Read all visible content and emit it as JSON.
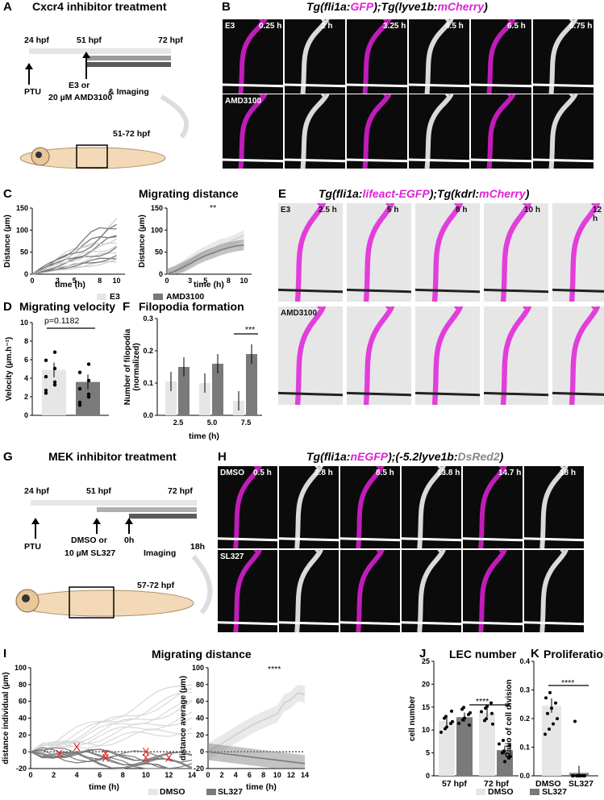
{
  "panels": {
    "A": "A",
    "B": "B",
    "C": "C",
    "D": "D",
    "E": "E",
    "F": "F",
    "G": "G",
    "H": "H",
    "I": "I",
    "J": "J",
    "K": "K"
  },
  "a": {
    "title": "Cxcr4 inhibitor treatment",
    "t24": "24 hpf",
    "t51": "51 hpf",
    "t72": "72 hpf",
    "ptu": "PTU",
    "drug_line1": "E3 or",
    "drug_line2": "20 µM AMD3100",
    "imaging": "& Imaging",
    "stage": "51-72 hpf"
  },
  "b": {
    "title_prefix": "Tg(fli1a:",
    "title_g": "GFP",
    "title_mid": ");Tg(lyve1b:",
    "title_m": "mCherry",
    "title_suffix": ")",
    "row1": "E3",
    "row2": "AMD3100",
    "times": [
      "0.25 h",
      "2 h",
      "3.25 h",
      "4.5 h",
      "6.5 h",
      "6.75 h"
    ]
  },
  "c": {
    "title": "Migrating distance",
    "ylabel": "Distance (µm)",
    "xlabel": "time (h)",
    "sig": "**",
    "legend": [
      "E3",
      "AMD3100"
    ],
    "yticks": [
      "0",
      "50",
      "100",
      "150"
    ],
    "xticks": [
      "0",
      "3",
      "5",
      "8",
      "10"
    ]
  },
  "d": {
    "title": "Migrating velocity",
    "ylabel": "Velocity (µm.h⁻¹)",
    "p": "p=0.1182",
    "yticks": [
      "0",
      "2",
      "4",
      "6",
      "8",
      "10"
    ]
  },
  "e": {
    "title_prefix": "Tg(fli1a:",
    "title_g": "lifeact-EGFP",
    "title_mid": ");Tg(kdrl:",
    "title_m": "mCherry",
    "title_suffix": ")",
    "row1": "E3",
    "row2": "AMD3100",
    "times": [
      "2.5 h",
      "5 h",
      "8 h",
      "10 h",
      "12 h"
    ]
  },
  "f": {
    "title": "Filopodia formation",
    "ylabel_1": "Number of filopodia",
    "ylabel_2": "(normalized)",
    "xlabel": "time (h)",
    "sig": "***",
    "yticks": [
      "0.0",
      "0.1",
      "0.2",
      "0.3"
    ],
    "xticks": [
      "2.5",
      "5.0",
      "7.5"
    ]
  },
  "g": {
    "title": "MEK inhibitor treatment",
    "t24": "24 hpf",
    "t51": "51 hpf",
    "t72": "72 hpf",
    "ptu": "PTU",
    "drug_line1": "DMSO or",
    "drug_line2": "10 µM SL327",
    "zero": "0h",
    "imaging": "Imaging",
    "h18": "18h",
    "stage": "57-72 hpf"
  },
  "h": {
    "title_prefix": "Tg(fli1a:",
    "title_g": "nEGFP",
    "title_mid": ");(-5.2lyve1b:",
    "title_m": "DsRed2",
    "title_suffix": ")",
    "row1": "DMSO",
    "row2": "SL327",
    "times": [
      "0.5 h",
      "2.8 h",
      "8.5 h",
      "13.8 h",
      "14.7 h",
      "18 h"
    ]
  },
  "i": {
    "title": "Migrating distance",
    "ylabel_left": "distance individual (µm)",
    "ylabel_right": "distance average (µm)",
    "xlabel": "time (h)",
    "sig": "****",
    "legend": [
      "DMSO",
      "SL327"
    ],
    "yticks_left": [
      "-20",
      "0",
      "20",
      "40",
      "60",
      "80",
      "100"
    ],
    "yticks_right": [
      "-20",
      "0",
      "20",
      "40",
      "60",
      "80",
      "100"
    ],
    "xticks": [
      "0",
      "2",
      "4",
      "6",
      "8",
      "10",
      "12",
      "14"
    ]
  },
  "j": {
    "title": "LEC number",
    "ylabel": "cell number",
    "sig": "****",
    "yticks": [
      "0",
      "5",
      "10",
      "15",
      "20",
      "25"
    ],
    "xticks": [
      "57 hpf",
      "72 hpf"
    ]
  },
  "k": {
    "title": "Proliferation",
    "ylabel": "Ratio of cell division",
    "sig": "****",
    "yticks": [
      "0.0",
      "0.1",
      "0.2",
      "0.3",
      "0.4"
    ],
    "xticks": [
      "DMSO",
      "SL327"
    ]
  },
  "legend_bottom": [
    "DMSO",
    "SL327"
  ],
  "colors": {
    "light": "#e6e6e6",
    "dark": "#7a7a7a",
    "magenta": "#e020d8",
    "red": "#e0221c"
  },
  "chart_data": [
    {
      "panel": "C-right",
      "type": "line",
      "title": "Migrating distance",
      "xlabel": "time (h)",
      "ylabel": "Distance (µm)",
      "ylim": [
        0,
        150
      ],
      "xlim": [
        0,
        11
      ],
      "series": [
        {
          "name": "E3",
          "x": [
            0,
            1,
            2,
            3,
            4,
            5,
            6,
            7,
            8,
            9,
            10
          ],
          "y": [
            0,
            8,
            18,
            30,
            42,
            52,
            60,
            68,
            72,
            80,
            88
          ]
        },
        {
          "name": "AMD3100",
          "x": [
            0,
            1,
            2,
            3,
            4,
            5,
            6,
            7,
            8,
            9,
            10
          ],
          "y": [
            0,
            6,
            15,
            24,
            34,
            42,
            48,
            55,
            60,
            64,
            66
          ]
        }
      ]
    },
    {
      "panel": "D",
      "type": "bar",
      "title": "Migrating velocity",
      "ylabel": "Velocity (µm.h⁻¹)",
      "ylim": [
        0,
        10
      ],
      "categories": [
        "E3",
        "AMD3100"
      ],
      "values": [
        4.9,
        3.6
      ]
    },
    {
      "panel": "F",
      "type": "bar",
      "title": "Filopodia formation",
      "xlabel": "time (h)",
      "ylabel": "Number of filopodia (normalized)",
      "ylim": [
        0,
        0.3
      ],
      "categories": [
        "2.5",
        "5.0",
        "7.5"
      ],
      "series": [
        {
          "name": "E3",
          "values": [
            0.105,
            0.1,
            0.045
          ]
        },
        {
          "name": "AMD3100",
          "values": [
            0.15,
            0.16,
            0.19
          ]
        }
      ]
    },
    {
      "panel": "I-right",
      "type": "line",
      "title": "Migrating distance",
      "xlabel": "time (h)",
      "ylabel": "distance average (µm)",
      "ylim": [
        -20,
        100
      ],
      "xlim": [
        0,
        14
      ],
      "series": [
        {
          "name": "DMSO",
          "x": [
            0,
            2,
            4,
            6,
            8,
            10,
            11,
            12,
            13,
            14
          ],
          "y": [
            0,
            10,
            20,
            30,
            38,
            45,
            58,
            62,
            70,
            68
          ]
        },
        {
          "name": "SL327",
          "x": [
            0,
            2,
            4,
            6,
            8,
            10,
            12,
            14
          ],
          "y": [
            0,
            -2,
            -4,
            -6,
            -8,
            -10,
            -12,
            -14
          ]
        }
      ]
    },
    {
      "panel": "J",
      "type": "bar",
      "title": "LEC number",
      "ylabel": "cell number",
      "ylim": [
        0,
        25
      ],
      "categories": [
        "57 hpf",
        "72 hpf"
      ],
      "series": [
        {
          "name": "DMSO",
          "values": [
            12.0,
            13.8
          ]
        },
        {
          "name": "SL327",
          "values": [
            12.8,
            5.6
          ]
        }
      ]
    },
    {
      "panel": "K",
      "type": "bar",
      "title": "Proliferation",
      "ylabel": "Ratio of cell division",
      "ylim": [
        0,
        0.4
      ],
      "categories": [
        "DMSO",
        "SL327"
      ],
      "values": [
        0.245,
        0.01
      ]
    }
  ]
}
